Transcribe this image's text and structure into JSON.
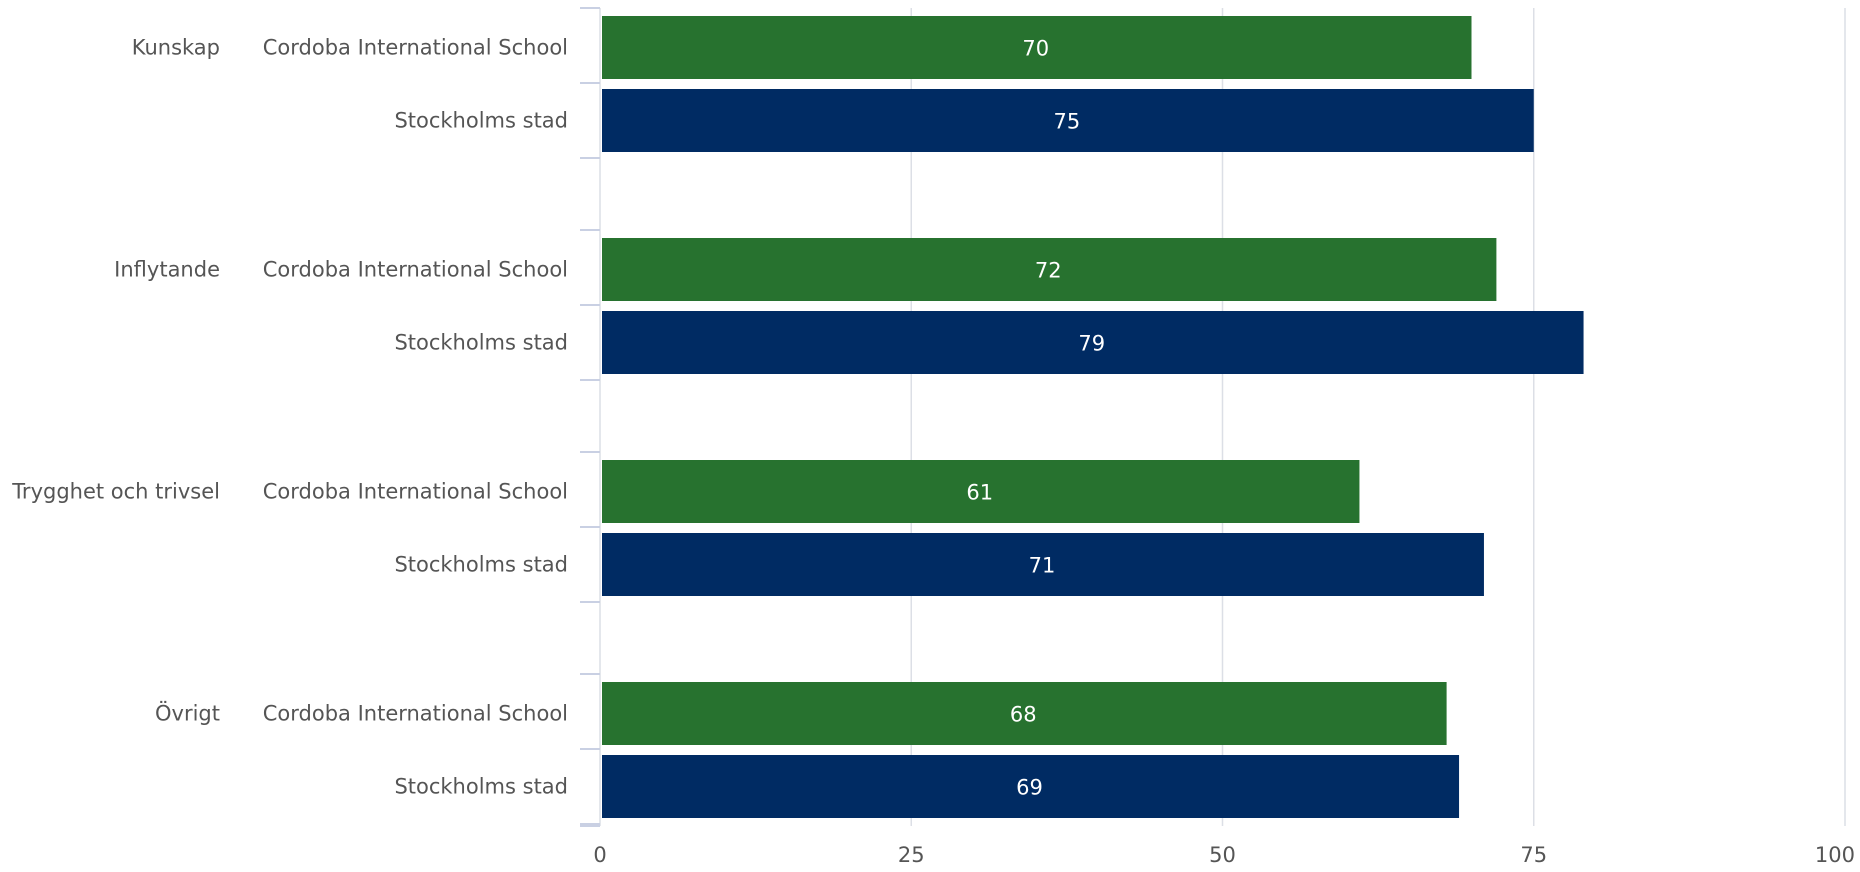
{
  "chart_data": {
    "type": "bar",
    "orientation": "horizontal",
    "groups": [
      "Kunskap",
      "Inflytande",
      "Trygghet och trivsel",
      "Övrigt"
    ],
    "series": [
      {
        "name": "Cordoba International School",
        "color": "#27722f",
        "values": [
          70,
          72,
          61,
          68
        ]
      },
      {
        "name": "Stockholms stad",
        "color": "#002b63",
        "values": [
          75,
          79,
          71,
          69
        ]
      }
    ],
    "xlim": [
      0,
      100
    ],
    "xticks": [
      "0",
      "25",
      "50",
      "75",
      "100"
    ],
    "grid": true,
    "title": "",
    "xlabel": "",
    "ylabel": ""
  }
}
